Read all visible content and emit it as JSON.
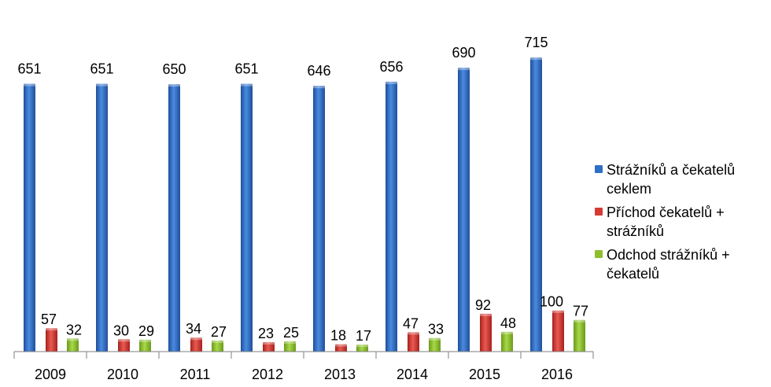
{
  "chart_data": {
    "type": "bar",
    "categories": [
      "2009",
      "2010",
      "2011",
      "2012",
      "2013",
      "2014",
      "2015",
      "2016"
    ],
    "series": [
      {
        "name": "Strážníků a čekatelů ceklem",
        "values": [
          651,
          651,
          650,
          651,
          646,
          656,
          690,
          715
        ],
        "color": "#2E6FC8"
      },
      {
        "name": "Příchod čekatelů + strážníků",
        "values": [
          57,
          30,
          34,
          23,
          18,
          47,
          92,
          100
        ],
        "color": "#D63A33"
      },
      {
        "name": "Odchod strážníků + čekatelů",
        "values": [
          32,
          29,
          27,
          25,
          17,
          33,
          48,
          77
        ],
        "color": "#8DBF2E"
      }
    ],
    "ylim": [
      0,
      740
    ],
    "grid": false,
    "legend": "right"
  }
}
